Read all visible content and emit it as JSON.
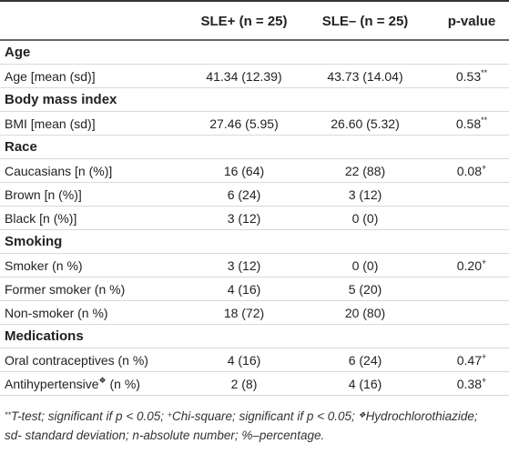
{
  "table": {
    "header": [
      "SLE+ (n = 25)",
      "SLE– (n = 25)",
      "p-value"
    ],
    "sections": [
      {
        "title": "Age",
        "rows": [
          {
            "label": "Age [mean (sd)]",
            "cells": [
              "41.34 (12.39)",
              "43.73 (14.04)"
            ],
            "p": {
              "value": "0.53",
              "mark": "**"
            }
          }
        ]
      },
      {
        "title": "Body mass index",
        "rows": [
          {
            "label": "BMI [mean (sd)]",
            "cells": [
              "27.46 (5.95)",
              "26.60 (5.32)"
            ],
            "p": {
              "value": "0.58",
              "mark": "**"
            }
          }
        ]
      },
      {
        "title": "Race",
        "rows": [
          {
            "label": "Caucasians [n (%)]",
            "cells": [
              "16 (64)",
              "22 (88)"
            ],
            "p": {
              "value": "0.08",
              "mark": "+"
            }
          },
          {
            "label": "Brown [n (%)]",
            "cells": [
              "6 (24)",
              "3 (12)"
            ]
          },
          {
            "label": "Black [n (%)]",
            "cells": [
              "3 (12)",
              "0 (0)"
            ]
          }
        ]
      },
      {
        "title": "Smoking",
        "rows": [
          {
            "label": "Smoker (n %)",
            "cells": [
              "3 (12)",
              "0 (0)"
            ],
            "p": {
              "value": "0.20",
              "mark": "+"
            }
          },
          {
            "label": "Former smoker (n %)",
            "cells": [
              "4 (16)",
              "5 (20)"
            ]
          },
          {
            "label": "Non-smoker (n %)",
            "cells": [
              "18 (72)",
              "20 (80)"
            ]
          }
        ]
      },
      {
        "title": "Medications",
        "rows": [
          {
            "label": "Oral contraceptives (n %)",
            "cells": [
              "4 (16)",
              "6 (24)"
            ],
            "p": {
              "value": "0.47",
              "mark": "+"
            }
          },
          {
            "label": "Antihypertensive",
            "label_mark": "❖",
            "label_suffix": " (n %)",
            "cells": [
              "2 (8)",
              "4 (16)"
            ],
            "p": {
              "value": "0.38",
              "mark": "+"
            }
          }
        ]
      }
    ],
    "footnote": [
      [
        {
          "sup": "**"
        },
        {
          "text": "T-test; significant if p < 0.05; "
        },
        {
          "sup": "+"
        },
        {
          "text": "Chi-square; significant if p < 0.05; "
        },
        {
          "sup": "❖"
        },
        {
          "text": "Hydrochlorothiazide;"
        }
      ],
      [
        {
          "text": "sd- standard deviation; n-absolute number; %–percentage."
        }
      ]
    ]
  }
}
